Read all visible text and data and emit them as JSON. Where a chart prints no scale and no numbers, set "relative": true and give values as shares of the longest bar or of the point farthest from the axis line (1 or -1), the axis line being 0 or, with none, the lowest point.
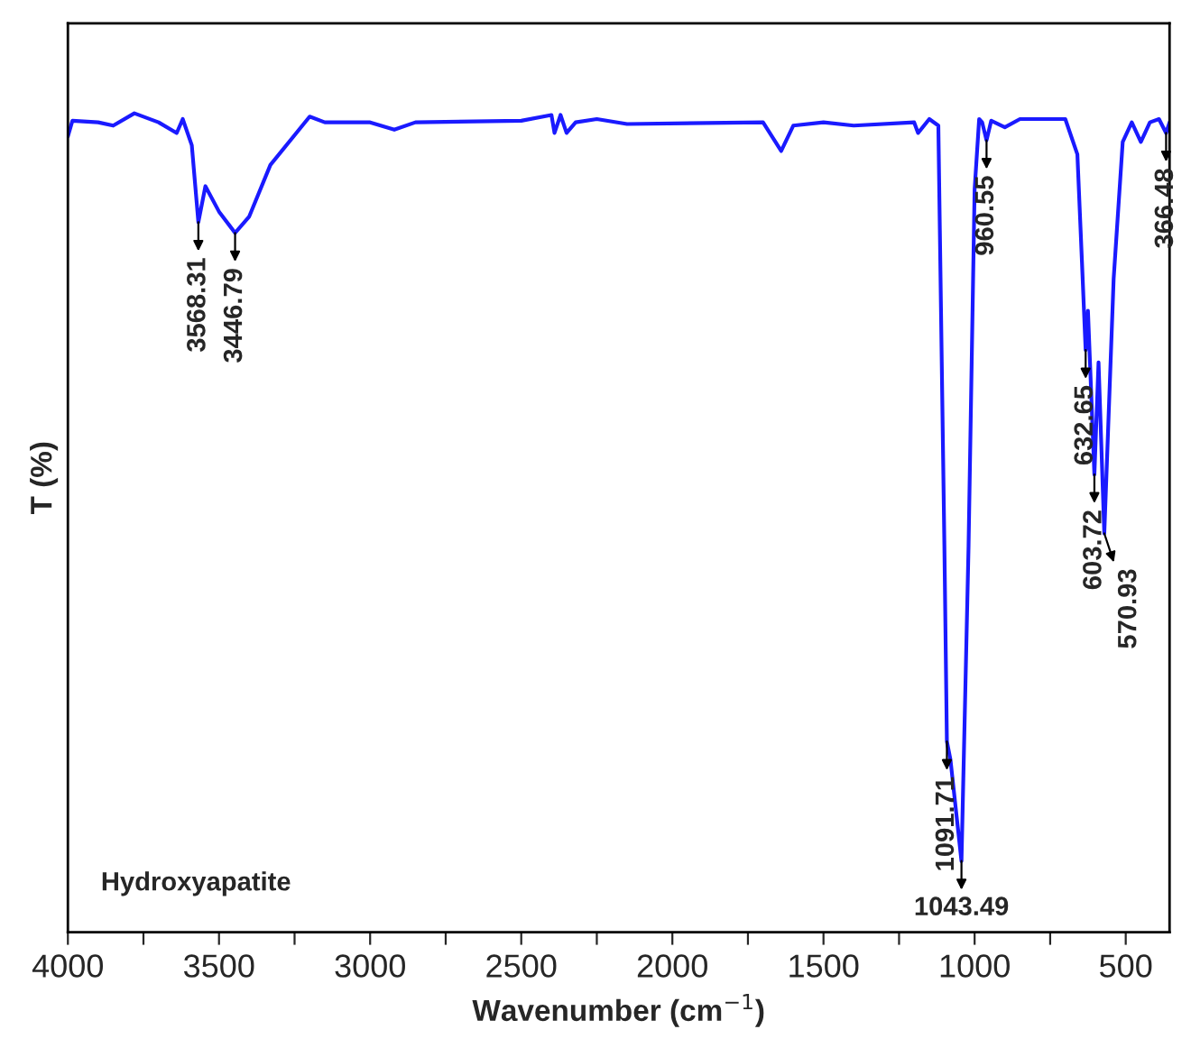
{
  "chart_data": {
    "type": "line",
    "relative": true,
    "xlabel": "Wavenumber (cm$^{−1}$)",
    "ylabel": "T (%)",
    "xlim": [
      4000,
      355
    ],
    "xticks": [
      4000,
      {
        "value": 3750,
        "label": null
      },
      3500,
      {
        "value": 3250,
        "label": null
      },
      3000,
      {
        "value": 2750,
        "label": null
      },
      2500,
      {
        "value": 2250,
        "label": null
      },
      2000,
      {
        "value": 1750,
        "label": null
      },
      1500,
      {
        "value": 1250,
        "label": null
      },
      1000,
      {
        "value": 750,
        "label": null
      },
      500
    ],
    "grid": false,
    "legend": false,
    "marker": "none",
    "line_style": "solid",
    "x": [
      4000,
      3985,
      3900,
      3850,
      3780,
      3700,
      3640,
      3620,
      3590,
      3568.31,
      3545,
      3500,
      3446.79,
      3400,
      3330,
      3200,
      3150,
      3000,
      2920,
      2850,
      2500,
      2400,
      2390,
      2370,
      2350,
      2320,
      2250,
      2150,
      1700,
      1640,
      1600,
      1500,
      1400,
      1200,
      1187,
      1150,
      1120,
      1100,
      1091.71,
      1080,
      1043.49,
      1020,
      1000,
      985,
      975,
      960.55,
      945,
      900,
      850,
      700,
      660,
      645,
      632.65,
      625,
      603.72,
      590,
      570.93,
      540,
      510,
      480,
      450,
      420,
      390,
      366.48,
      355
    ],
    "series": [
      {
        "color": "#1a1aff",
        "values": [
          0.972,
          0.991,
          0.989,
          0.985,
          1.0,
          0.989,
          0.976,
          0.993,
          0.961,
          0.867,
          0.911,
          0.88,
          0.854,
          0.874,
          0.937,
          0.996,
          0.989,
          0.989,
          0.98,
          0.989,
          0.991,
          0.998,
          0.976,
          0.998,
          0.976,
          0.989,
          0.993,
          0.987,
          0.989,
          0.954,
          0.985,
          0.989,
          0.985,
          0.989,
          0.976,
          0.993,
          0.985,
          0.472,
          0.233,
          0.211,
          0.087,
          0.472,
          0.907,
          0.993,
          0.989,
          0.967,
          0.991,
          0.983,
          0.993,
          0.993,
          0.95,
          0.82,
          0.711,
          0.759,
          0.559,
          0.696,
          0.487,
          0.798,
          0.965,
          0.989,
          0.965,
          0.989,
          0.993,
          0.976,
          0.989
        ]
      }
    ],
    "annotations": [
      {
        "text": "3568.31",
        "x": 3568.31,
        "y": 0.867
      },
      {
        "text": "3446.79",
        "x": 3446.79,
        "y": 0.854
      },
      {
        "text": "1091.71",
        "x": 1091.71,
        "y": 0.233
      },
      {
        "text": "1043.49",
        "x": 1043.49,
        "y": 0.087
      },
      {
        "text": "960.55",
        "x": 960.55,
        "y": 0.967
      },
      {
        "text": "632.65",
        "x": 632.65,
        "y": 0.711
      },
      {
        "text": "603.72",
        "x": 603.72,
        "y": 0.559
      },
      {
        "text": "570.93",
        "x": 570.93,
        "y": 0.487
      },
      {
        "text": "366.48",
        "x": 366.48,
        "y": 0.976
      },
      "Hydroxyapatite"
    ]
  }
}
